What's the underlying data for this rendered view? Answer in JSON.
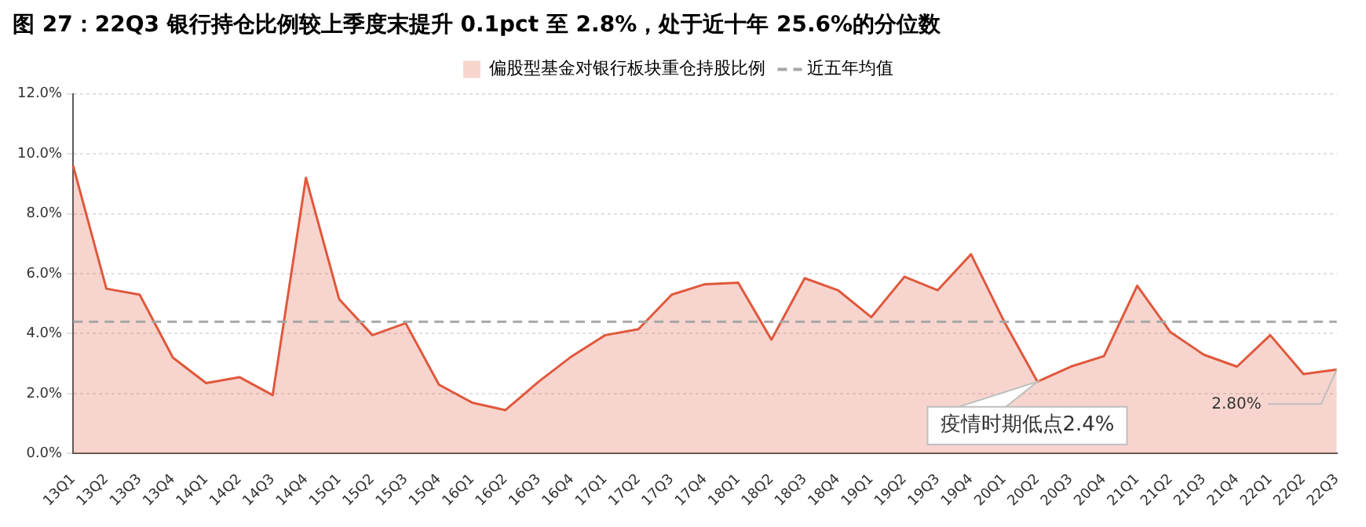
{
  "chart_data": {
    "type": "area",
    "title": "图 27：22Q3 银行持仓比例较上季度末提升 0.1pct 至 2.8%，处于近十年 25.6%的分位数",
    "categories": [
      "13Q1",
      "13Q2",
      "13Q3",
      "13Q4",
      "14Q1",
      "14Q2",
      "14Q3",
      "14Q4",
      "15Q1",
      "15Q2",
      "15Q3",
      "15Q4",
      "16Q1",
      "16Q2",
      "16Q3",
      "16Q4",
      "17Q1",
      "17Q2",
      "17Q3",
      "17Q4",
      "18Q1",
      "18Q2",
      "18Q3",
      "18Q4",
      "19Q1",
      "19Q2",
      "19Q3",
      "19Q4",
      "20Q1",
      "20Q2",
      "20Q3",
      "20Q4",
      "21Q1",
      "21Q2",
      "21Q3",
      "21Q4",
      "22Q1",
      "22Q2",
      "22Q3"
    ],
    "series": [
      {
        "name": "偏股型基金对银行板块重仓持股比例",
        "color": "#e0583c",
        "values": [
          9.6,
          5.5,
          5.3,
          3.2,
          2.35,
          2.55,
          1.95,
          9.2,
          5.15,
          3.95,
          4.35,
          2.3,
          1.7,
          1.45,
          2.4,
          3.25,
          3.95,
          4.15,
          5.3,
          5.65,
          5.7,
          3.8,
          5.85,
          5.45,
          4.55,
          5.9,
          5.45,
          6.65,
          4.4,
          2.4,
          2.9,
          3.25,
          5.6,
          4.05,
          3.3,
          2.9,
          3.95,
          2.65,
          2.8
        ]
      }
    ],
    "ylim": [
      0,
      12
    ],
    "yticks": [
      {
        "value": 0,
        "label": "0.0%"
      },
      {
        "value": 2,
        "label": "2.0%"
      },
      {
        "value": 4,
        "label": "4.0%"
      },
      {
        "value": 6,
        "label": "6.0%"
      },
      {
        "value": 8,
        "label": "8.0%"
      },
      {
        "value": 10,
        "label": "10.0%"
      },
      {
        "value": 12,
        "label": "12.0%"
      }
    ],
    "ref_lines": [
      {
        "axis": "y",
        "value": 4.4,
        "label": "近五年均值",
        "color": "#a6a6a6",
        "line_style": "dashed"
      }
    ],
    "annotations": [
      {
        "text": "疫情时期低点2.4%",
        "x": "20Q2",
        "y": 2.4
      },
      {
        "text": "2.80%",
        "x": "22Q3",
        "y": 2.8
      }
    ],
    "grid": "y",
    "legend": "top",
    "marker": "none",
    "line_style": "solid"
  }
}
